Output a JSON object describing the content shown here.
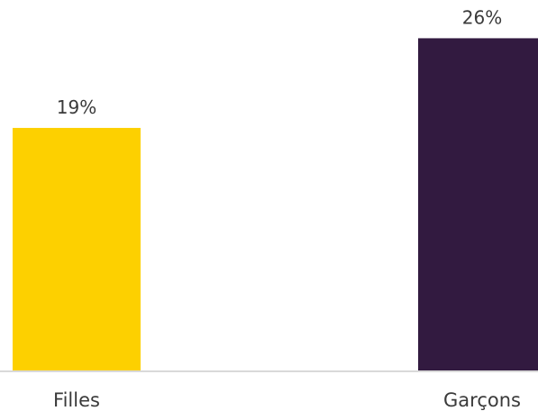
{
  "chart_data": {
    "type": "bar",
    "categories": [
      "Filles",
      "Garçons"
    ],
    "values": [
      19,
      26
    ],
    "value_labels": [
      "19%",
      "26%"
    ],
    "colors": [
      "#FDD000",
      "#321A40"
    ],
    "ylim": [
      0,
      28
    ],
    "grid": false,
    "legend": "none",
    "baseline_color": "#D9D9D9"
  }
}
